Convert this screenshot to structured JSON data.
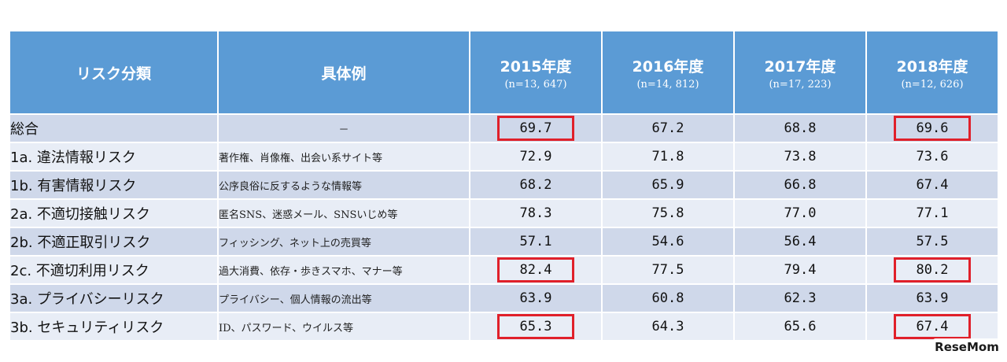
{
  "header": {
    "category_label": "リスク分類",
    "example_label": "具体例",
    "years": [
      {
        "year": "2015年度",
        "n": "(n=13, 647)"
      },
      {
        "year": "2016年度",
        "n": "(n=14, 812)"
      },
      {
        "year": "2017年度",
        "n": "(n=17, 223)"
      },
      {
        "year": "2018年度",
        "n": "(n=12, 626)"
      }
    ]
  },
  "rows": [
    {
      "category": "総合",
      "example": "－",
      "values": [
        "69.7",
        "67.2",
        "68.8",
        "69.6"
      ]
    },
    {
      "category": "1a.  違法情報リスク",
      "example": "著作権、肖像権、出会い系サイト等",
      "values": [
        "72.9",
        "71.8",
        "73.8",
        "73.6"
      ]
    },
    {
      "category": "1b.  有害情報リスク",
      "example": "公序良俗に反するような情報等",
      "values": [
        "68.2",
        "65.9",
        "66.8",
        "67.4"
      ]
    },
    {
      "category": "2a.  不適切接触リスク",
      "example": "匿名SNS、迷惑メール、SNSいじめ等",
      "values": [
        "78.3",
        "75.8",
        "77.0",
        "77.1"
      ]
    },
    {
      "category": "2b.  不適正取引リスク",
      "example": "フィッシング、ネット上の売買等",
      "values": [
        "57.1",
        "54.6",
        "56.4",
        "57.5"
      ]
    },
    {
      "category": "2c.  不適切利用リスク",
      "example": "過大消費、依存・歩きスマホ、マナー等",
      "values": [
        "82.4",
        "77.5",
        "79.4",
        "80.2"
      ]
    },
    {
      "category": "3a.  プライバシーリスク",
      "example": "プライバシー、個人情報の流出等",
      "values": [
        "63.9",
        "60.8",
        "62.3",
        "63.9"
      ]
    },
    {
      "category": "3b.  セキュリティリスク",
      "example": "ID、パスワード、ウイルス等",
      "values": [
        "65.3",
        "64.3",
        "65.6",
        "67.4"
      ]
    }
  ],
  "watermark": "ReseMom",
  "colors": {
    "header_bg": "#5b9bd5",
    "row_odd": "#cfd8ea",
    "row_even": "#e8edf6",
    "highlight_border": "#e0202a"
  }
}
